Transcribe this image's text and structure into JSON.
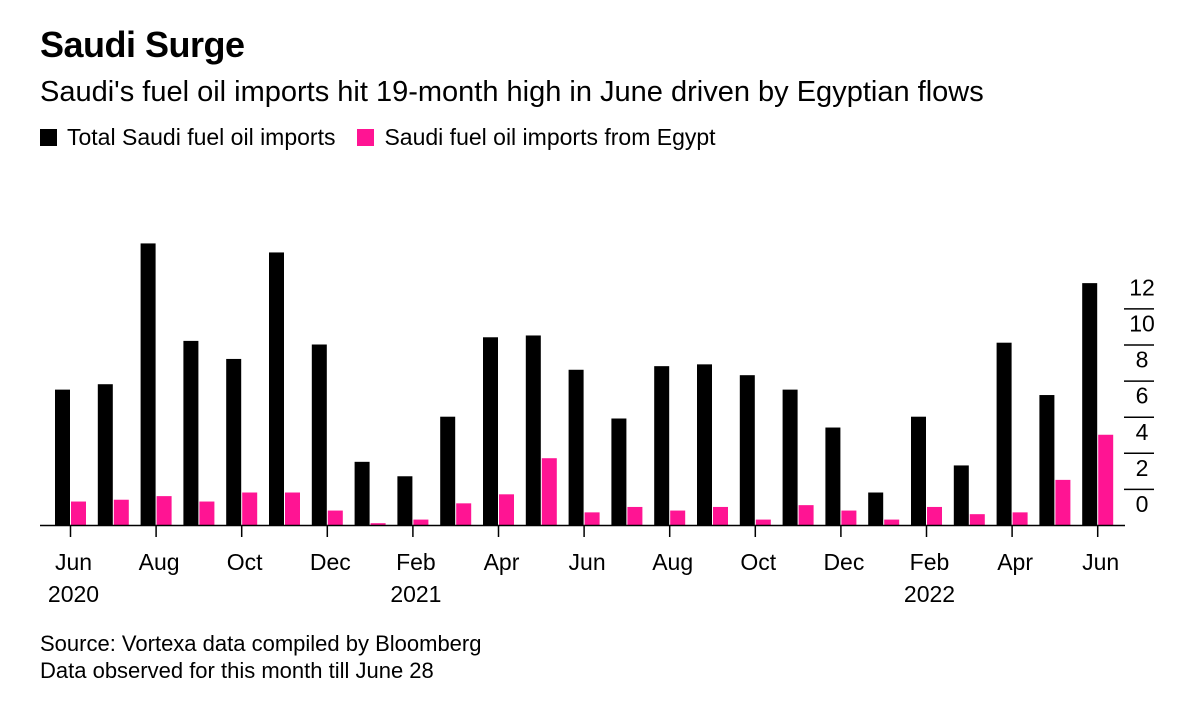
{
  "title": "Saudi Surge",
  "subtitle": "Saudi's fuel oil imports hit 19-month high in June driven by Egyptian flows",
  "footer": {
    "source": "Source: Vortexa data compiled by Bloomberg",
    "note": "Data observed for this month till June 28"
  },
  "colors": {
    "total": "#000000",
    "egypt": "#ff1493",
    "axis": "#000000"
  },
  "chart_data": {
    "type": "bar",
    "categories": [
      "Jun 2020",
      "Jul 2020",
      "Aug 2020",
      "Sep 2020",
      "Oct 2020",
      "Nov 2020",
      "Dec 2020",
      "Jan 2021",
      "Feb 2021",
      "Mar 2021",
      "Apr 2021",
      "May 2021",
      "Jun 2021",
      "Jul 2021",
      "Aug 2021",
      "Sep 2021",
      "Oct 2021",
      "Nov 2021",
      "Dec 2021",
      "Jan 2022",
      "Feb 2022",
      "Mar 2022",
      "Apr 2022",
      "May 2022",
      "Jun 2022"
    ],
    "series": [
      {
        "name": "Total Saudi fuel oil imports",
        "values": [
          7.5,
          7.8,
          15.6,
          10.2,
          9.2,
          15.1,
          10.0,
          3.5,
          2.7,
          6.0,
          10.4,
          10.5,
          8.6,
          5.9,
          8.8,
          8.9,
          8.3,
          7.5,
          5.4,
          1.8,
          6.0,
          3.3,
          10.1,
          7.2,
          13.4
        ]
      },
      {
        "name": "Saudi fuel oil imports from Egypt",
        "values": [
          1.3,
          1.4,
          1.6,
          1.3,
          1.8,
          1.8,
          0.8,
          0.1,
          0.3,
          1.2,
          1.7,
          3.7,
          0.7,
          1.0,
          0.8,
          1.0,
          0.3,
          1.1,
          0.8,
          0.3,
          1.0,
          0.6,
          0.7,
          2.5,
          5.0
        ]
      }
    ],
    "x_tick_labels": [
      {
        "index": 0,
        "month": "Jun",
        "year": "2020"
      },
      {
        "index": 2,
        "month": "Aug",
        "year": ""
      },
      {
        "index": 4,
        "month": "Oct",
        "year": ""
      },
      {
        "index": 6,
        "month": "Dec",
        "year": ""
      },
      {
        "index": 8,
        "month": "Feb",
        "year": "2021"
      },
      {
        "index": 10,
        "month": "Apr",
        "year": ""
      },
      {
        "index": 12,
        "month": "Jun",
        "year": ""
      },
      {
        "index": 14,
        "month": "Aug",
        "year": ""
      },
      {
        "index": 16,
        "month": "Oct",
        "year": ""
      },
      {
        "index": 18,
        "month": "Dec",
        "year": ""
      },
      {
        "index": 20,
        "month": "Feb",
        "year": "2022"
      },
      {
        "index": 22,
        "month": "Apr",
        "year": ""
      },
      {
        "index": 24,
        "month": "Jun",
        "year": ""
      }
    ],
    "y_ticks": [
      0,
      2,
      4,
      6,
      8,
      10,
      12
    ],
    "ylim": [
      0,
      19.6
    ],
    "grid": false,
    "legend_position": "top-left",
    "y_axis_side": "right"
  }
}
